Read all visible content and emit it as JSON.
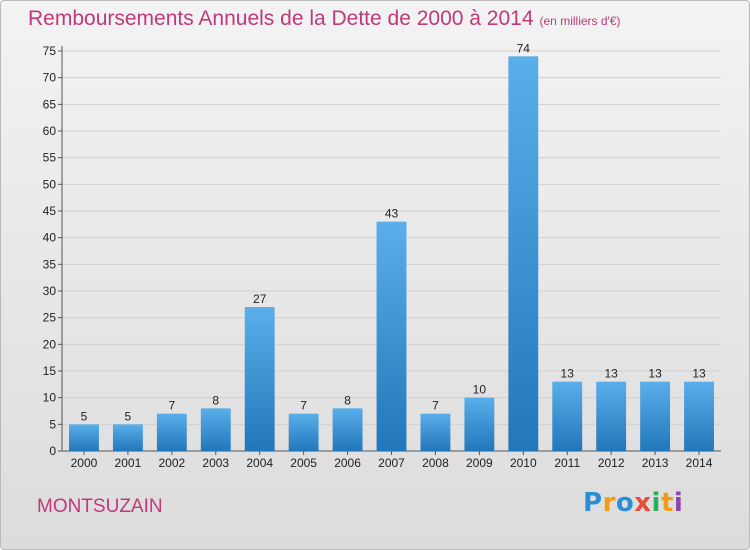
{
  "title": "Remboursements Annuels de la Dette de 2000 à 2014",
  "unit_note": "(en milliers d'€)",
  "location": "MONTSUZAIN",
  "logo": {
    "text": "Proxiti"
  },
  "colors": {
    "title": "#c0397a",
    "bar_top": "#5aaeea",
    "bar_bottom": "#2277bb",
    "grid": "#d0d0d0"
  },
  "chart_data": {
    "type": "bar",
    "title": "Remboursements Annuels de la Dette de 2000 à 2014",
    "xlabel": "",
    "ylabel": "",
    "ylim": [
      0,
      75
    ],
    "yticks": [
      0,
      5,
      10,
      15,
      20,
      25,
      30,
      35,
      40,
      45,
      50,
      55,
      60,
      65,
      70,
      75
    ],
    "grid": true,
    "categories": [
      "2000",
      "2001",
      "2002",
      "2003",
      "2004",
      "2005",
      "2006",
      "2007",
      "2008",
      "2009",
      "2010",
      "2011",
      "2012",
      "2013",
      "2014"
    ],
    "values": [
      5,
      5,
      7,
      8,
      27,
      7,
      8,
      43,
      7,
      10,
      74,
      13,
      13,
      13,
      13
    ]
  }
}
